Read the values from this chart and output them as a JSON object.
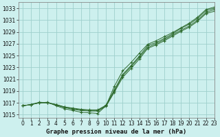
{
  "title": "Graphe pression niveau de la mer (hPa)",
  "bg_color": "#cdf0ee",
  "grid_color": "#9ecfcc",
  "line_color": "#2d6a2d",
  "xlim": [
    -0.5,
    23
  ],
  "ylim": [
    1014.5,
    1034.0
  ],
  "yticks": [
    1015,
    1017,
    1019,
    1021,
    1023,
    1025,
    1027,
    1029,
    1031,
    1033
  ],
  "xticks": [
    0,
    1,
    2,
    3,
    4,
    5,
    6,
    7,
    8,
    9,
    10,
    11,
    12,
    13,
    14,
    15,
    16,
    17,
    18,
    19,
    20,
    21,
    22,
    23
  ],
  "series": [
    [
      1016.5,
      1016.7,
      1017.1,
      1017.0,
      1016.7,
      1016.3,
      1016.1,
      1015.9,
      1015.8,
      1015.8,
      1016.6,
      1019.2,
      1021.8,
      1023.3,
      1024.9,
      1026.7,
      1027.2,
      1027.9,
      1028.7,
      1029.6,
      1030.3,
      1031.3,
      1032.6,
      1033.0
    ],
    [
      1016.5,
      1016.7,
      1017.0,
      1017.0,
      1016.7,
      1016.3,
      1016.0,
      1015.8,
      1015.7,
      1015.7,
      1016.5,
      1019.0,
      1021.6,
      1023.1,
      1024.7,
      1026.4,
      1027.0,
      1027.7,
      1028.5,
      1029.3,
      1030.0,
      1031.0,
      1032.3,
      1032.8
    ],
    [
      1016.5,
      1016.7,
      1017.0,
      1017.0,
      1016.6,
      1016.2,
      1015.9,
      1015.7,
      1015.6,
      1015.6,
      1016.4,
      1018.8,
      1021.3,
      1022.8,
      1024.4,
      1026.2,
      1026.8,
      1027.5,
      1028.3,
      1029.1,
      1029.8,
      1030.8,
      1032.1,
      1032.5
    ],
    [
      1016.5,
      1016.7,
      1017.0,
      1017.1,
      1016.5,
      1016.0,
      1015.7,
      1015.4,
      1015.3,
      1015.2,
      1016.5,
      1019.8,
      1022.4,
      1023.8,
      1025.4,
      1026.9,
      1027.5,
      1028.2,
      1028.9,
      1029.7,
      1030.5,
      1031.5,
      1032.8,
      1033.2
    ]
  ],
  "title_fontsize": 6.5,
  "tick_fontsize": 5.5
}
